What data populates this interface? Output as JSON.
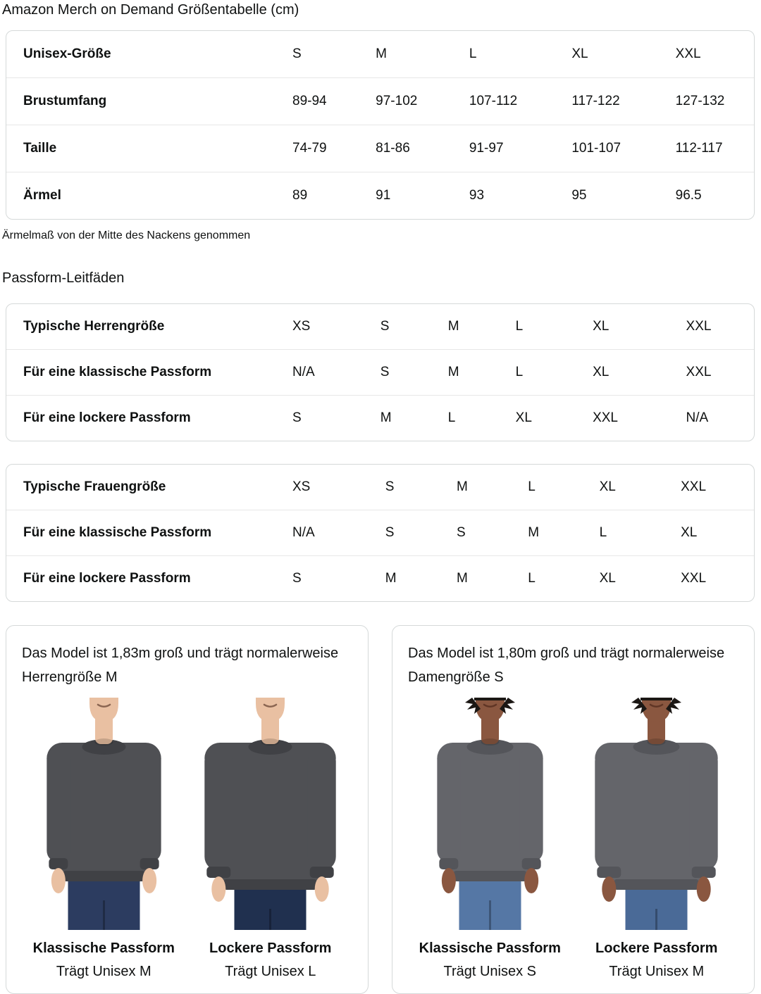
{
  "page_title": "Amazon Merch on Demand Größentabelle (cm)",
  "size_table": {
    "header_label": "Unisex-Größe",
    "sizes": [
      "S",
      "M",
      "L",
      "XL",
      "XXL"
    ],
    "rows": [
      {
        "label": "Brustumfang",
        "values": [
          "89-94",
          "97-102",
          "107-112",
          "117-122",
          "127-132"
        ]
      },
      {
        "label": "Taille",
        "values": [
          "74-79",
          "81-86",
          "91-97",
          "101-107",
          "112-117"
        ]
      },
      {
        "label": "Ärmel",
        "values": [
          "89",
          "91",
          "93",
          "95",
          "96.5"
        ]
      }
    ],
    "footnote": "Ärmelmaß von der Mitte des Nackens genommen"
  },
  "fit_guides": {
    "section_title": "Passform-Leitfäden",
    "men_table": {
      "header_label": "Typische Herrengröße",
      "sizes": [
        "XS",
        "S",
        "M",
        "L",
        "XL",
        "XXL"
      ],
      "rows": [
        {
          "label": "Für eine klassische Passform",
          "values": [
            "N/A",
            "S",
            "M",
            "L",
            "XL",
            "XXL"
          ]
        },
        {
          "label": "Für eine lockere Passform",
          "values": [
            "S",
            "M",
            "L",
            "XL",
            "XXL",
            "N/A"
          ]
        }
      ]
    },
    "women_table": {
      "header_label": "Typische Frauengröße",
      "sizes": [
        "XS",
        "S",
        "M",
        "L",
        "XL",
        "XXL"
      ],
      "rows": [
        {
          "label": "Für eine klassische Passform",
          "values": [
            "N/A",
            "S",
            "S",
            "M",
            "L",
            "XL"
          ]
        },
        {
          "label": "Für eine lockere Passform",
          "values": [
            "S",
            "M",
            "M",
            "L",
            "XL",
            "XXL"
          ]
        }
      ]
    }
  },
  "model_cards": [
    {
      "intro": "Das Model ist 1,83m groß und trägt normalerweise Herrengröße M",
      "figures": [
        {
          "fit_title": "Klassische Passform",
          "wears": "Trägt Unisex M"
        },
        {
          "fit_title": "Lockere Passform",
          "wears": "Trägt Unisex L"
        }
      ]
    },
    {
      "intro": "Das Model ist 1,80m groß und trägt normalerweise Damengröße S",
      "figures": [
        {
          "fit_title": "Klassische Passform",
          "wears": "Trägt Unisex S"
        },
        {
          "fit_title": "Lockere Passform",
          "wears": "Trägt Unisex M"
        }
      ]
    }
  ],
  "colors": {
    "text": "#0f1111",
    "table_border": "#d5d9d9",
    "row_divider": "#e7e7e7",
    "sweatshirt_dark": "#4f5054",
    "sweatshirt_light": "#64656a",
    "rib_dark": "#404145",
    "rib_light": "#54555a",
    "skin_male": "#e9c0a2",
    "skin_female": "#8a5740",
    "hair_female": "#1b1714",
    "jeans_male_classic": "#2c3c60",
    "jeans_male_loose": "#20304f",
    "jeans_female_classic": "#5577a5",
    "jeans_female_loose": "#4a6a97"
  }
}
